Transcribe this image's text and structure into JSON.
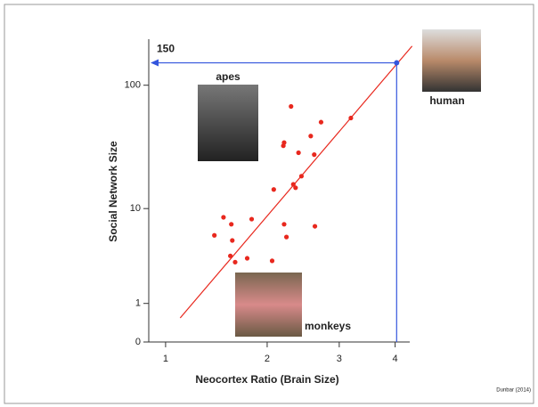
{
  "chart_data": {
    "type": "scatter",
    "xlabel": "Neocortex Ratio (Brain Size)",
    "ylabel": "Social Network Size",
    "xscale": "symlog",
    "yscale": "symlog",
    "xlim": [
      0.87,
      4.3
    ],
    "ylim": [
      0,
      230
    ],
    "xticks": [
      1,
      2,
      3,
      4
    ],
    "yticks": [
      0,
      1,
      10,
      100
    ],
    "series": [
      {
        "color": "#e8281e",
        "x": [
          1.43,
          1.52,
          1.6,
          1.61,
          1.59,
          1.64,
          1.77,
          1.82,
          2.06,
          2.08,
          2.21,
          2.24,
          2.2,
          2.21,
          2.3,
          2.33,
          2.36,
          2.4,
          2.44,
          2.57,
          2.62,
          2.63,
          2.72,
          3.19
        ],
        "values": [
          5.8,
          8.4,
          7.3,
          5.2,
          3.7,
          3.2,
          3.5,
          8.1,
          3.3,
          14.5,
          7.3,
          5.6,
          33,
          35,
          68,
          16,
          15,
          29,
          18.7,
          39.5,
          28,
          7.0,
          51,
          55
        ]
      }
    ],
    "fit": {
      "color": "#e8281e",
      "x": [
        1.12,
        4.35
      ],
      "values": [
        0.54,
        203
      ]
    },
    "highlight": {
      "color": "#3355dd",
      "x": 4.03,
      "y": 150
    },
    "annotations": [
      "apes",
      "human",
      "monkeys"
    ],
    "source": "Dunbar (2014)"
  }
}
